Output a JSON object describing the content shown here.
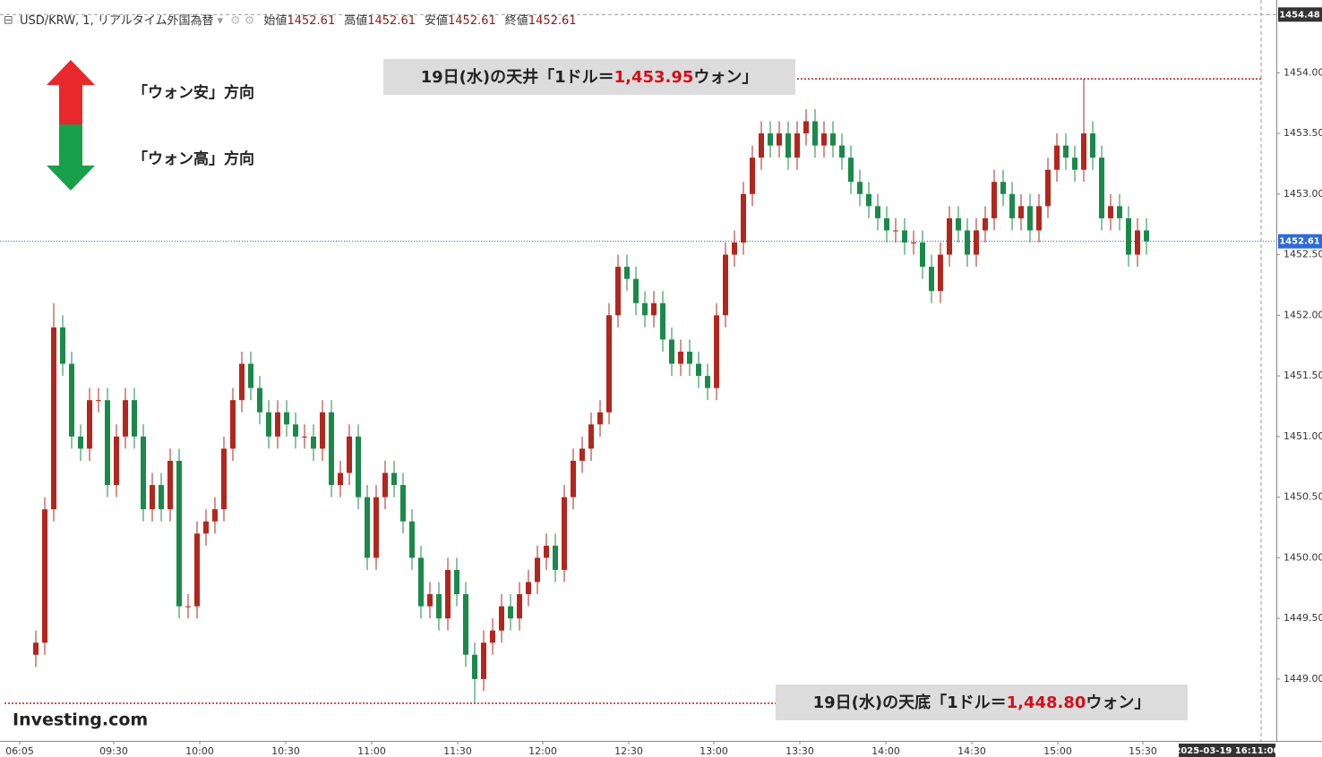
{
  "chart_data": {
    "type": "candlestick",
    "header": {
      "symbol": "USD/KRW, 1, リアルタイム外国為替",
      "fields": [
        {
          "name": "始値",
          "value": 1452.61
        },
        {
          "name": "高値",
          "value": 1452.61
        },
        {
          "name": "安値",
          "value": 1452.61
        },
        {
          "name": "終値",
          "value": 1452.61
        }
      ]
    },
    "legend_arrows": [
      {
        "label": "「ウォン安」方向",
        "color": "#e8282b"
      },
      {
        "label": "「ウォン高」方向",
        "color": "#19a04a"
      }
    ],
    "annotations": [
      {
        "prefix": "19日(水)の天井「1ドル＝",
        "value_label": "1,453.95",
        "suffix": "ウォン」",
        "value": 1453.95
      },
      {
        "prefix": "19日(水)の天底「1ドル＝",
        "value_label": "1,448.80",
        "suffix": "ウォン」",
        "value": 1448.8
      }
    ],
    "logo": "Investing.com",
    "up_color": "#b3261e",
    "down_color": "#1a8a4a",
    "open": [
      1449.2,
      1449.3,
      1450.4,
      1451.9,
      1451.6,
      1451.0,
      1450.9,
      1451.3,
      1451.3,
      1450.6,
      1451.0,
      1451.3,
      1451.0,
      1450.4,
      1450.6,
      1450.4,
      1450.8,
      1449.6,
      1449.6,
      1450.2,
      1450.3,
      1450.4,
      1450.9,
      1451.3,
      1451.6,
      1451.4,
      1451.2,
      1451.0,
      1451.2,
      1451.1,
      1451.0,
      1451.0,
      1450.9,
      1451.2,
      1450.6,
      1450.7,
      1451.0,
      1450.5,
      1450.0,
      1450.5,
      1450.7,
      1450.6,
      1450.3,
      1450.0,
      1449.6,
      1449.7,
      1449.5,
      1449.9,
      1449.7,
      1449.2,
      1449.0,
      1449.3,
      1449.4,
      1449.6,
      1449.5,
      1449.7,
      1449.8,
      1450.0,
      1450.1,
      1449.9,
      1450.5,
      1450.8,
      1450.9,
      1451.1,
      1451.2,
      1452.0,
      1452.4,
      1452.3,
      1452.1,
      1452.0,
      1452.1,
      1451.8,
      1451.6,
      1451.7,
      1451.6,
      1451.5,
      1451.4,
      1452.0,
      1452.5,
      1452.6,
      1453.0,
      1453.3,
      1453.5,
      1453.4,
      1453.5,
      1453.3,
      1453.5,
      1453.6,
      1453.4,
      1453.5,
      1453.4,
      1453.3,
      1453.1,
      1453.0,
      1452.9,
      1452.8,
      1452.7,
      1452.7,
      1452.6,
      1452.6,
      1452.4,
      1452.2,
      1452.5,
      1452.8,
      1452.7,
      1452.5,
      1452.7,
      1452.8,
      1453.1,
      1453.0,
      1452.8,
      1452.9,
      1452.7,
      1452.9,
      1453.2,
      1453.4,
      1453.3,
      1453.2,
      1453.5,
      1453.3,
      1452.8,
      1452.9,
      1452.8,
      1452.5,
      1452.7
    ],
    "high": [
      1449.4,
      1450.5,
      1452.1,
      1452.0,
      1451.7,
      1451.1,
      1451.4,
      1451.4,
      1451.4,
      1451.1,
      1451.4,
      1451.4,
      1451.1,
      1450.7,
      1450.7,
      1450.9,
      1450.9,
      1449.7,
      1450.3,
      1450.4,
      1450.5,
      1451.0,
      1451.4,
      1451.7,
      1451.7,
      1451.5,
      1451.3,
      1451.3,
      1451.3,
      1451.2,
      1451.1,
      1451.1,
      1451.3,
      1451.3,
      1450.8,
      1451.1,
      1451.1,
      1450.6,
      1450.6,
      1450.8,
      1450.8,
      1450.7,
      1450.4,
      1450.1,
      1449.8,
      1449.8,
      1450.0,
      1450.0,
      1449.8,
      1449.3,
      1449.4,
      1449.5,
      1449.7,
      1449.7,
      1449.8,
      1449.9,
      1450.1,
      1450.2,
      1450.2,
      1450.6,
      1450.9,
      1451.0,
      1451.2,
      1451.3,
      1452.1,
      1452.5,
      1452.5,
      1452.4,
      1452.2,
      1452.2,
      1452.2,
      1451.9,
      1451.8,
      1451.8,
      1451.7,
      1451.6,
      1452.1,
      1452.6,
      1452.7,
      1453.1,
      1453.4,
      1453.6,
      1453.6,
      1453.6,
      1453.6,
      1453.6,
      1453.7,
      1453.7,
      1453.6,
      1453.6,
      1453.5,
      1453.4,
      1453.2,
      1453.1,
      1453.0,
      1452.9,
      1452.8,
      1452.8,
      1452.7,
      1452.7,
      1452.5,
      1452.6,
      1452.9,
      1452.9,
      1452.8,
      1452.8,
      1452.9,
      1453.2,
      1453.2,
      1453.1,
      1453.0,
      1453.0,
      1453.0,
      1453.3,
      1453.5,
      1453.5,
      1453.4,
      1453.95,
      1453.6,
      1453.4,
      1453.0,
      1453.0,
      1452.9,
      1452.8,
      1452.8
    ],
    "low": [
      1449.1,
      1449.2,
      1450.3,
      1451.5,
      1450.9,
      1450.8,
      1450.8,
      1451.2,
      1450.5,
      1450.5,
      1450.9,
      1450.9,
      1450.3,
      1450.3,
      1450.3,
      1450.3,
      1449.5,
      1449.5,
      1449.5,
      1450.1,
      1450.2,
      1450.3,
      1450.8,
      1451.2,
      1451.3,
      1451.1,
      1450.9,
      1450.9,
      1451.0,
      1450.9,
      1450.9,
      1450.8,
      1450.8,
      1450.5,
      1450.5,
      1450.6,
      1450.4,
      1449.9,
      1449.9,
      1450.4,
      1450.5,
      1450.2,
      1449.9,
      1449.5,
      1449.5,
      1449.4,
      1449.4,
      1449.6,
      1449.1,
      1448.8,
      1448.9,
      1449.2,
      1449.3,
      1449.4,
      1449.4,
      1449.6,
      1449.7,
      1449.9,
      1449.8,
      1449.8,
      1450.4,
      1450.7,
      1450.8,
      1451.0,
      1451.1,
      1451.9,
      1452.2,
      1452.0,
      1451.9,
      1451.9,
      1451.7,
      1451.5,
      1451.5,
      1451.5,
      1451.4,
      1451.3,
      1451.3,
      1451.9,
      1452.4,
      1452.5,
      1452.9,
      1453.2,
      1453.3,
      1453.3,
      1453.2,
      1453.2,
      1453.4,
      1453.3,
      1453.3,
      1453.3,
      1453.2,
      1453.0,
      1452.9,
      1452.8,
      1452.7,
      1452.6,
      1452.6,
      1452.5,
      1452.5,
      1452.3,
      1452.1,
      1452.1,
      1452.4,
      1452.6,
      1452.4,
      1452.4,
      1452.6,
      1452.7,
      1452.9,
      1452.7,
      1452.7,
      1452.6,
      1452.6,
      1452.8,
      1453.1,
      1453.2,
      1453.1,
      1453.1,
      1453.2,
      1452.7,
      1452.7,
      1452.7,
      1452.4,
      1452.4,
      1452.5
    ],
    "close": [
      1449.3,
      1450.4,
      1451.9,
      1451.6,
      1451.0,
      1450.9,
      1451.3,
      1451.3,
      1450.6,
      1451.0,
      1451.3,
      1451.0,
      1450.4,
      1450.6,
      1450.4,
      1450.8,
      1449.6,
      1449.6,
      1450.2,
      1450.3,
      1450.4,
      1450.9,
      1451.3,
      1451.6,
      1451.4,
      1451.2,
      1451.0,
      1451.2,
      1451.1,
      1451.0,
      1451.0,
      1450.9,
      1451.2,
      1450.6,
      1450.7,
      1451.0,
      1450.5,
      1450.0,
      1450.5,
      1450.7,
      1450.6,
      1450.3,
      1450.0,
      1449.6,
      1449.7,
      1449.5,
      1449.9,
      1449.7,
      1449.2,
      1449.0,
      1449.3,
      1449.4,
      1449.6,
      1449.5,
      1449.7,
      1449.8,
      1450.0,
      1450.1,
      1449.9,
      1450.5,
      1450.8,
      1450.9,
      1451.1,
      1451.2,
      1452.0,
      1452.4,
      1452.3,
      1452.1,
      1452.0,
      1452.1,
      1451.8,
      1451.6,
      1451.7,
      1451.6,
      1451.5,
      1451.4,
      1452.0,
      1452.5,
      1452.6,
      1453.0,
      1453.3,
      1453.5,
      1453.4,
      1453.5,
      1453.3,
      1453.5,
      1453.6,
      1453.4,
      1453.5,
      1453.4,
      1453.3,
      1453.1,
      1453.0,
      1452.9,
      1452.8,
      1452.7,
      1452.7,
      1452.6,
      1452.6,
      1452.4,
      1452.2,
      1452.5,
      1452.8,
      1452.7,
      1452.5,
      1452.7,
      1452.8,
      1453.1,
      1453.0,
      1452.8,
      1452.9,
      1452.7,
      1452.9,
      1453.2,
      1453.4,
      1453.3,
      1453.2,
      1453.5,
      1453.3,
      1452.8,
      1452.9,
      1452.8,
      1452.5,
      1452.7,
      1452.61
    ],
    "xlim": [
      -4,
      138.5
    ],
    "xticks": [
      {
        "value": -1.8,
        "label": "06:05"
      },
      {
        "value": 8.7,
        "label": "09:30"
      },
      {
        "value": 18.3,
        "label": "10:00"
      },
      {
        "value": 27.9,
        "label": "10:30"
      },
      {
        "value": 37.5,
        "label": "11:00"
      },
      {
        "value": 47.1,
        "label": "11:30"
      },
      {
        "value": 56.6,
        "label": "12:00"
      },
      {
        "value": 66.2,
        "label": "12:30"
      },
      {
        "value": 75.7,
        "label": "13:00"
      },
      {
        "value": 85.3,
        "label": "13:30"
      },
      {
        "value": 94.9,
        "label": "14:00"
      },
      {
        "value": 104.5,
        "label": "14:30"
      },
      {
        "value": 114.1,
        "label": "15:00"
      },
      {
        "value": 123.6,
        "label": "15:30"
      }
    ],
    "ylim": [
      1448.49,
      1454.6
    ],
    "yticks": [
      {
        "value": 1449,
        "label": "1449.00"
      },
      {
        "value": 1449.5,
        "label": "1449.50"
      },
      {
        "value": 1450,
        "label": "1450.00"
      },
      {
        "value": 1450.5,
        "label": "1450.50"
      },
      {
        "value": 1451,
        "label": "1451.00"
      },
      {
        "value": 1451.5,
        "label": "1451.50"
      },
      {
        "value": 1452,
        "label": "1452.00"
      },
      {
        "value": 1452.5,
        "label": "1452.50"
      },
      {
        "value": 1453,
        "label": "1453.00"
      },
      {
        "value": 1453.5,
        "label": "1453.50"
      },
      {
        "value": 1454,
        "label": "1454.00"
      }
    ],
    "high_tag": {
      "value": 1454.48,
      "label": "1454.48"
    },
    "last_price": {
      "value": 1452.61,
      "label": "1452.61"
    },
    "timestamp": "2025-03-19 16:11:00"
  }
}
